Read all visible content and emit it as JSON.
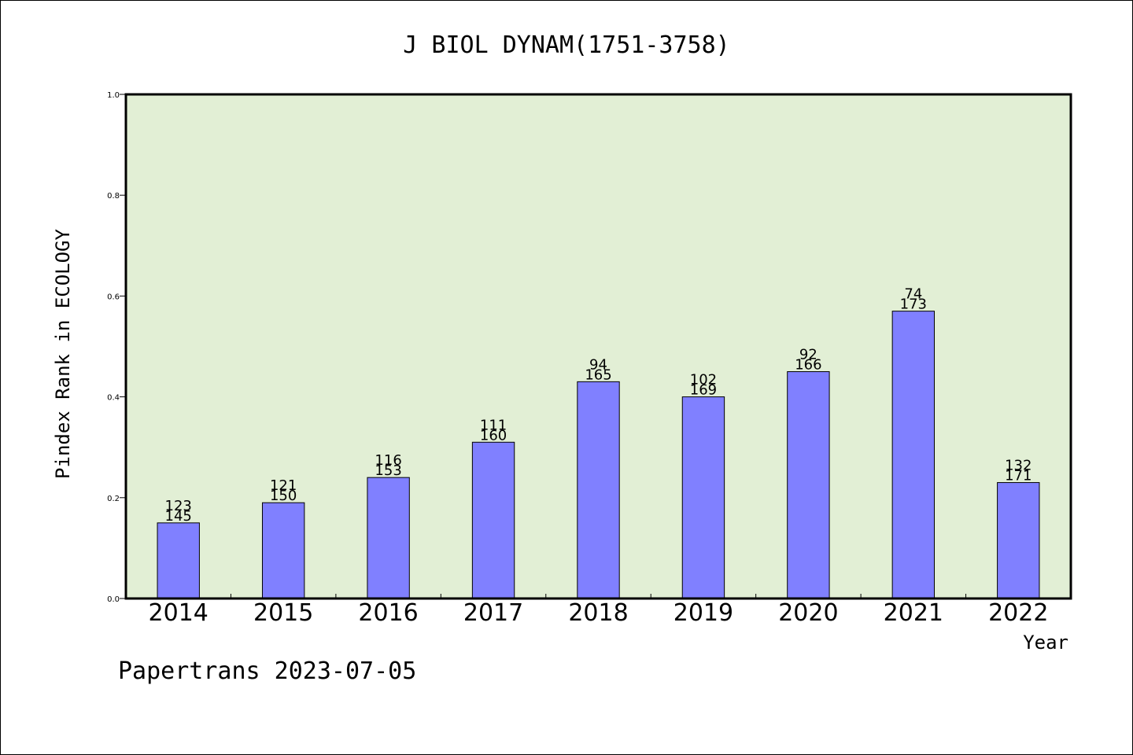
{
  "chart_data": {
    "type": "bar",
    "title": "J BIOL DYNAM(1751-3758)",
    "xlabel": "Year",
    "ylabel": "Pindex Rank in ECOLOGY",
    "categories": [
      "2014",
      "2015",
      "2016",
      "2017",
      "2018",
      "2019",
      "2020",
      "2021",
      "2022"
    ],
    "values": [
      0.15,
      0.19,
      0.24,
      0.31,
      0.43,
      0.4,
      0.45,
      0.57,
      0.23
    ],
    "labels_top": [
      "123",
      "121",
      "116",
      "111",
      "94",
      "102",
      "92",
      "74",
      "132"
    ],
    "labels_bottom": [
      "145",
      "150",
      "153",
      "160",
      "165",
      "169",
      "166",
      "173",
      "171"
    ],
    "ylim": [
      0,
      1.0
    ],
    "yticks": [
      "0.0",
      "0.2",
      "0.4",
      "0.6",
      "0.8",
      "1.0"
    ],
    "grid": false,
    "colors": {
      "bar": "#8080ff",
      "plot_bg": "#e2efd5",
      "axis": "#000000"
    }
  },
  "footer": "Papertrans 2023-07-05"
}
